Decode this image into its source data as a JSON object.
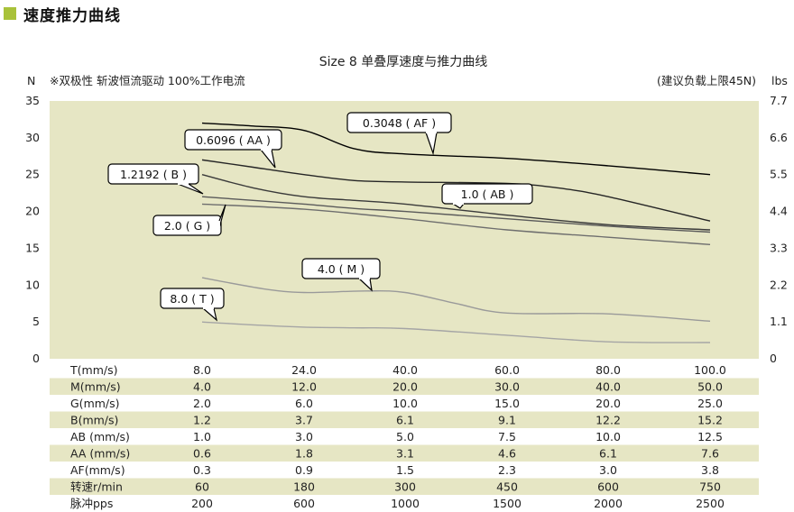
{
  "header": {
    "title": "速度推力曲线",
    "accent_color": "#a9c23a"
  },
  "chart_data": {
    "type": "line",
    "title": "Size 8 单叠厚速度与推力曲线",
    "subtitle": "※双极性 斩波恒流驱动 100%工作电流",
    "note": "(建议负载上限45N)",
    "note_color": "#d0312d",
    "y_left_unit": "N",
    "y_right_unit": "lbs",
    "ylim": [
      0,
      35
    ],
    "y_left_ticks": [
      "0",
      "5",
      "10",
      "15",
      "20",
      "25",
      "30",
      "35"
    ],
    "y_right_ticks": [
      "0",
      "1.1",
      "2.2",
      "3.3",
      "4.4",
      "5.5",
      "6.6",
      "7.7"
    ],
    "plot_background": "#e6e6c4",
    "x_positions": [
      1,
      2,
      3,
      4,
      5,
      6
    ],
    "series": [
      {
        "name": "0.3048 ( AF )",
        "color": "#000000",
        "x": [
          1,
          1.5,
          2,
          2.5,
          3,
          4,
          5,
          6
        ],
        "y": [
          32,
          31.6,
          31,
          28.5,
          27.8,
          27.2,
          26.2,
          25
        ]
      },
      {
        "name": "0.6096 ( AA )",
        "color": "#262626",
        "x": [
          1,
          1.5,
          2,
          2.5,
          3,
          4,
          4.5,
          5,
          6
        ],
        "y": [
          27,
          26,
          25,
          24.2,
          24,
          23.8,
          23.2,
          22,
          18.7
        ]
      },
      {
        "name": "1.2192 ( B )",
        "color": "#3a3a3a",
        "x": [
          1,
          1.5,
          2,
          2.5,
          3,
          4,
          5,
          6
        ],
        "y": [
          25,
          23.2,
          22,
          21.5,
          21,
          19.5,
          18.2,
          17.5
        ]
      },
      {
        "name": "1.0 ( AB )",
        "color": "#5a5a5a",
        "x": [
          1,
          1.5,
          2,
          2.5,
          3,
          4,
          5,
          6
        ],
        "y": [
          22,
          21.5,
          21,
          20.4,
          20,
          19,
          18,
          17.2
        ]
      },
      {
        "name": "2.0 ( G )",
        "color": "#6e6e6e",
        "x": [
          1,
          2,
          3,
          4,
          5,
          6
        ],
        "y": [
          21,
          20.3,
          19,
          17.5,
          16.5,
          15.5
        ]
      },
      {
        "name": "4.0 ( M )",
        "color": "#9a9a9a",
        "x": [
          1,
          1.6,
          2,
          2.6,
          3,
          3.5,
          4,
          5,
          6
        ],
        "y": [
          11,
          9.5,
          9,
          9.2,
          9,
          7.5,
          6.2,
          6.1,
          5.1
        ]
      },
      {
        "name": "8.0 ( T )",
        "color": "#a5a5a5",
        "x": [
          1,
          1.5,
          2,
          2.5,
          3,
          4,
          5,
          6
        ],
        "y": [
          5,
          4.6,
          4.3,
          4.2,
          4.1,
          3.2,
          2.3,
          2.2
        ]
      }
    ],
    "callouts": [
      {
        "text": "0.3048 ( AF )",
        "series": 0
      },
      {
        "text": "0.6096 ( AA )",
        "series": 1
      },
      {
        "text": "1.2192 ( B )",
        "series": 2
      },
      {
        "text": "1.0 ( AB )",
        "series": 3
      },
      {
        "text": "2.0 ( G )",
        "series": 4
      },
      {
        "text": "4.0 ( M )",
        "series": 5
      },
      {
        "text": "8.0 ( T )",
        "series": 6
      }
    ],
    "table": {
      "stripe_color": "#e6e6c4",
      "rows": [
        {
          "label": "T(mm/s)",
          "values": [
            "8.0",
            "24.0",
            "40.0",
            "60.0",
            "80.0",
            "100.0"
          ]
        },
        {
          "label": "M(mm/s)",
          "values": [
            "4.0",
            "12.0",
            "20.0",
            "30.0",
            "40.0",
            "50.0"
          ]
        },
        {
          "label": "G(mm/s)",
          "values": [
            "2.0",
            "6.0",
            "10.0",
            "15.0",
            "20.0",
            "25.0"
          ]
        },
        {
          "label": "B(mm/s)",
          "values": [
            "1.2",
            "3.7",
            "6.1",
            "9.1",
            "12.2",
            "15.2"
          ]
        },
        {
          "label": "AB (mm/s)",
          "values": [
            "1.0",
            "3.0",
            "5.0",
            "7.5",
            "10.0",
            "12.5"
          ]
        },
        {
          "label": "AA (mm/s)",
          "values": [
            "0.6",
            "1.8",
            "3.1",
            "4.6",
            "6.1",
            "7.6"
          ]
        },
        {
          "label": "AF(mm/s)",
          "values": [
            "0.3",
            "0.9",
            "1.5",
            "2.3",
            "3.0",
            "3.8"
          ]
        },
        {
          "label": "转速r/min",
          "values": [
            "60",
            "180",
            "300",
            "450",
            "600",
            "750"
          ]
        },
        {
          "label": "脉冲pps",
          "values": [
            "200",
            "600",
            "1000",
            "1500",
            "2000",
            "2500"
          ]
        }
      ]
    }
  }
}
